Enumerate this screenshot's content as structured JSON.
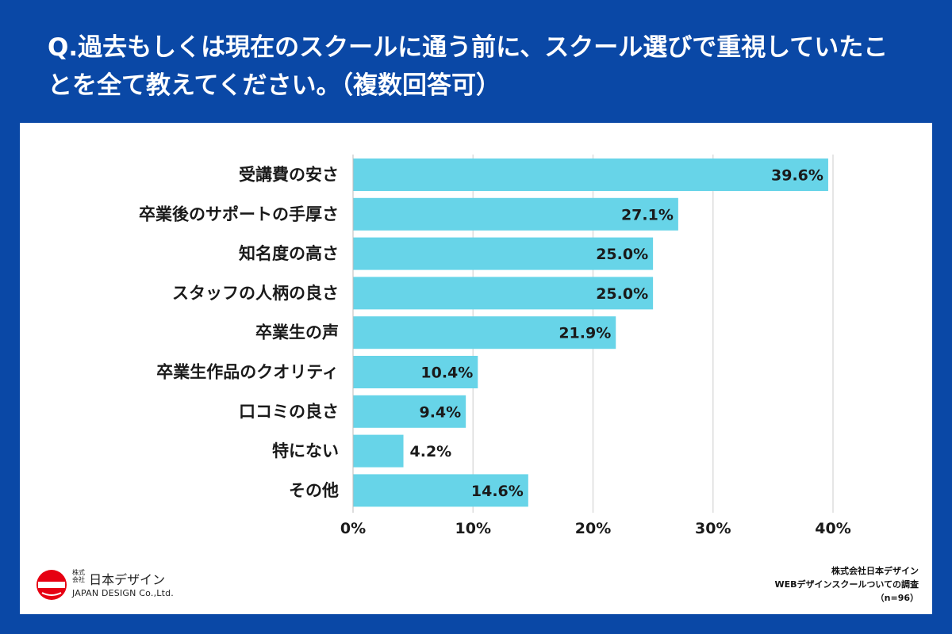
{
  "header": {
    "title": "Q.過去もしくは現在のスクールに通う前に、スクール選びで重視していたことを全て教えてください。（複数回答可）"
  },
  "chart_data": {
    "type": "bar",
    "orientation": "horizontal",
    "categories": [
      "受講費の安さ",
      "卒業後のサポートの手厚さ",
      "知名度の高さ",
      "スタッフの人柄の良さ",
      "卒業生の声",
      "卒業生作品のクオリティ",
      "口コミの良さ",
      "特にない",
      "その他"
    ],
    "values": [
      39.6,
      27.1,
      25.0,
      25.0,
      21.9,
      10.4,
      9.4,
      4.2,
      14.6
    ],
    "value_labels": [
      "39.6%",
      "27.1%",
      "25.0%",
      "25.0%",
      "21.9%",
      "10.4%",
      "9.4%",
      "4.2%",
      "14.6%"
    ],
    "xlim": [
      0,
      40
    ],
    "xticks": [
      0,
      10,
      20,
      30,
      40
    ],
    "xtick_labels": [
      "0%",
      "10%",
      "20%",
      "30%",
      "40%"
    ],
    "grid": true,
    "bar_color": "#67d4e8"
  },
  "footer": {
    "logo_kk_top": "株式",
    "logo_kk_bottom": "会社",
    "logo_name": "日本デザイン",
    "logo_en": "JAPAN DESIGN Co.,Ltd.",
    "credit_company": "株式会社日本デザイン",
    "credit_survey": "WEBデザインスクールついての調査",
    "credit_n": "（n=96）"
  },
  "colors": {
    "background": "#0a48a6",
    "bar": "#67d4e8",
    "logo_red": "#e60012"
  }
}
